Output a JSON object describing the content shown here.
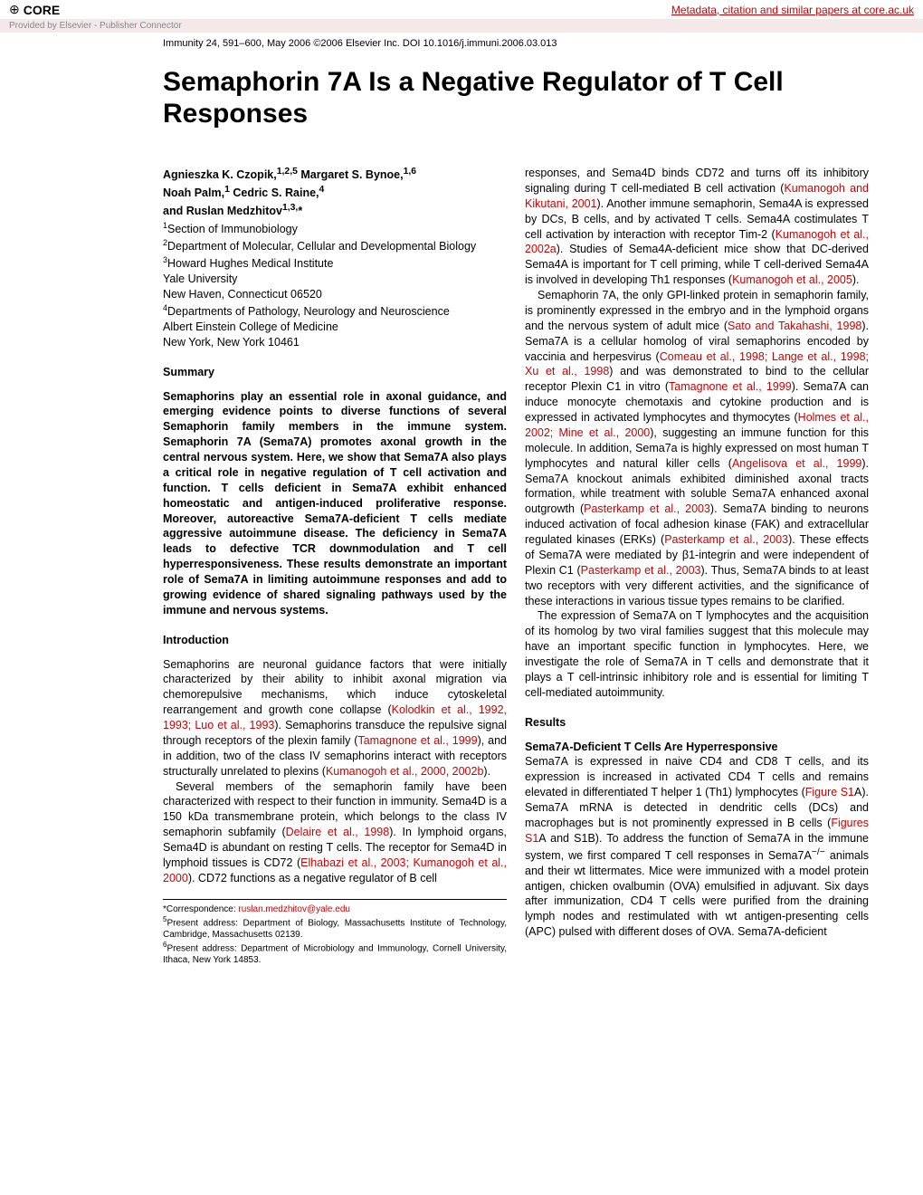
{
  "banner": {
    "brand": "CORE",
    "metadata_link": "Metadata, citation and similar papers at core.ac.uk",
    "provided_by": "Provided by Elsevier - Publisher Connector"
  },
  "citation": "Immunity 24, 591–600, May 2006 ©2006 Elsevier Inc.   DOI 10.1016/j.immuni.2006.03.013",
  "title": "Semaphorin 7A Is a Negative Regulator of T Cell Responses",
  "authors_block": {
    "line1_pre": "Agnieszka K. Czopik,",
    "line1_sup1": "1,2,5",
    "line1_mid": " Margaret S. Bynoe,",
    "line1_sup2": "1,6",
    "line2_a": "Noah Palm,",
    "line2_sup_a": "1",
    "line2_b": " Cedric S. Raine,",
    "line2_sup_b": "4",
    "line3_a": "and Ruslan Medzhitov",
    "line3_sup": "1,3,",
    "line3_star": "*"
  },
  "affiliations": {
    "a1_sup": "1",
    "a1": "Section of Immunobiology",
    "a2_sup": "2",
    "a2": "Department of Molecular, Cellular and Developmental Biology",
    "a3_sup": "3",
    "a3": "Howard Hughes Medical Institute",
    "a4": "Yale University",
    "a5": "New Haven, Connecticut 06520",
    "a6_sup": "4",
    "a6": "Departments of Pathology, Neurology and Neuroscience",
    "a7": "Albert Einstein College of Medicine",
    "a8": "New York, New York 10461"
  },
  "summary_head": "Summary",
  "summary": "Semaphorins play an essential role in axonal guidance, and emerging evidence points to diverse functions of several Semaphorin family members in the immune system. Semaphorin 7A (Sema7A) promotes axonal growth in the central nervous system. Here, we show that Sema7A also plays a critical role in negative regulation of T cell activation and function. T cells deficient in Sema7A exhibit enhanced homeostatic and antigen-induced proliferative response. Moreover, autoreactive Sema7A-deficient T cells mediate aggressive autoimmune disease. The deficiency in Sema7A leads to defective TCR downmodulation and T cell hyperresponsiveness. These results demonstrate an important role of Sema7A in limiting autoimmune responses and add to growing evidence of shared signaling pathways used by the immune and nervous systems.",
  "intro_head": "Introduction",
  "intro_p1_a": "Semaphorins are neuronal guidance factors that were initially characterized by their ability to inhibit axonal migration via chemorepulsive mechanisms, which induce cytoskeletal rearrangement and growth cone collapse (",
  "intro_p1_ref1": "Kolodkin et al., 1992, 1993; Luo et al., 1993",
  "intro_p1_b": "). Semaphorins transduce the repulsive signal through receptors of the plexin family (",
  "intro_p1_ref2": "Tamagnone et al., 1999",
  "intro_p1_c": "), and in addition, two of the class IV semaphorins interact with receptors structurally unrelated to plexins (",
  "intro_p1_ref3": "Kumanogoh et al., 2000, 2002b",
  "intro_p1_d": ").",
  "intro_p2_a": "Several members of the semaphorin family have been characterized with respect to their function in immunity. Sema4D is a 150 kDa transmembrane protein, which belongs to the class IV semaphorin subfamily (",
  "intro_p2_ref1": "Delaire et al., 1998",
  "intro_p2_b": "). In lymphoid organs, Sema4D is abundant on resting T cells. The receptor for Sema4D in lymphoid tissues is CD72 (",
  "intro_p2_ref2": "Elhabazi et al., 2003; Kumanogoh et al., 2000",
  "intro_p2_c": "). CD72 functions as a negative regulator of B cell",
  "right_p1_a": "responses, and Sema4D binds CD72 and turns off its inhibitory signaling during T cell-mediated B cell activation (",
  "right_p1_ref1": "Kumanogoh and Kikutani, 2001",
  "right_p1_b": "). Another immune semaphorin, Sema4A is expressed by DCs, B cells, and by activated T cells. Sema4A costimulates T cell activation by interaction with receptor Tim-2 (",
  "right_p1_ref2": "Kumanogoh et al., 2002a",
  "right_p1_c": "). Studies of Sema4A-deficient mice show that DC-derived Sema4A is important for T cell priming, while T cell-derived Sema4A is involved in developing Th1 responses (",
  "right_p1_ref3": "Kumanogoh et al., 2005",
  "right_p1_d": ").",
  "right_p2_a": "Semaphorin 7A, the only GPI-linked protein in semaphorin family, is prominently expressed in the embryo and in the lymphoid organs and the nervous system of adult mice (",
  "right_p2_ref1": "Sato and Takahashi, 1998",
  "right_p2_b": "). Sema7A is a cellular homolog of viral semaphorins encoded by vaccinia and herpesvirus (",
  "right_p2_ref2": "Comeau et al., 1998; Lange et al., 1998; Xu et al., 1998",
  "right_p2_c": ") and was demonstrated to bind to the cellular receptor Plexin C1 in vitro (",
  "right_p2_ref3": "Tamagnone et al., 1999",
  "right_p2_d": "). Sema7A can induce monocyte chemotaxis and cytokine production and is expressed in activated lymphocytes and thymocytes (",
  "right_p2_ref4": "Holmes et al., 2002; Mine et al., 2000",
  "right_p2_e": "), suggesting an immune function for this molecule. In addition, Sema7a is highly expressed on most human T lymphocytes and natural killer cells (",
  "right_p2_ref5": "Angelisova et al., 1999",
  "right_p2_f": "). Sema7A knockout animals exhibited diminished axonal tracts formation, while treatment with soluble Sema7A enhanced axonal outgrowth (",
  "right_p2_ref6": "Pasterkamp et al., 2003",
  "right_p2_g": "). Sema7A binding to neurons induced activation of focal adhesion kinase (FAK) and extracellular regulated kinases (ERKs) (",
  "right_p2_ref7": "Pasterkamp et al., 2003",
  "right_p2_h": "). These effects of Sema7A were mediated by β1-integrin and were independent of Plexin C1 (",
  "right_p2_ref8": "Pasterkamp et al., 2003",
  "right_p2_i": "). Thus, Sema7A binds to at least two receptors with very different activities, and the significance of these interactions in various tissue types remains to be clarified.",
  "right_p3": "The expression of Sema7A on T lymphocytes and the acquisition of its homolog by two viral families suggest that this molecule may have an important specific function in lymphocytes. Here, we investigate the role of Sema7A in T cells and demonstrate that it plays a T cell-intrinsic inhibitory role and is essential for limiting T cell-mediated autoimmunity.",
  "results_head": "Results",
  "results_sub": "Sema7A-Deficient T Cells Are Hyperresponsive",
  "results_p1_a": "Sema7A is expressed in naive CD4 and CD8 T cells, and its expression is increased in activated CD4 T cells and remains elevated in differentiated T helper 1 (Th1) lymphocytes (",
  "results_p1_ref1": "Figure S1",
  "results_p1_b": "A). Sema7A mRNA is detected in dendritic cells (DCs) and macrophages but is not prominently expressed in B cells (",
  "results_p1_ref2": "Figures S1",
  "results_p1_c": "A and S1B). To address the function of Sema7A in the immune system, we first compared T cell responses in Sema7A",
  "results_p1_sup": "−/−",
  "results_p1_d": " animals and their wt littermates. Mice were immunized with a model protein antigen, chicken ovalbumin (OVA) emulsified in adjuvant. Six days after immunization, CD4 T cells were purified from the draining lymph nodes and restimulated with wt antigen-presenting cells (APC) pulsed with different doses of OVA. Sema7A-deficient",
  "corr": {
    "corr_label": "*Correspondence: ",
    "email": "ruslan.medzhitov@yale.edu",
    "n5_sup": "5",
    "n5": "Present address: Department of Biology, Massachusetts Institute of Technology, Cambridge, Massachusetts 02139.",
    "n6_sup": "6",
    "n6": "Present address: Department of Microbiology and Immunology, Cornell University, Ithaca, New York 14853."
  },
  "colors": {
    "link": "#cc0000",
    "banner_bg": "#f5e8e8",
    "grey": "#888888"
  }
}
